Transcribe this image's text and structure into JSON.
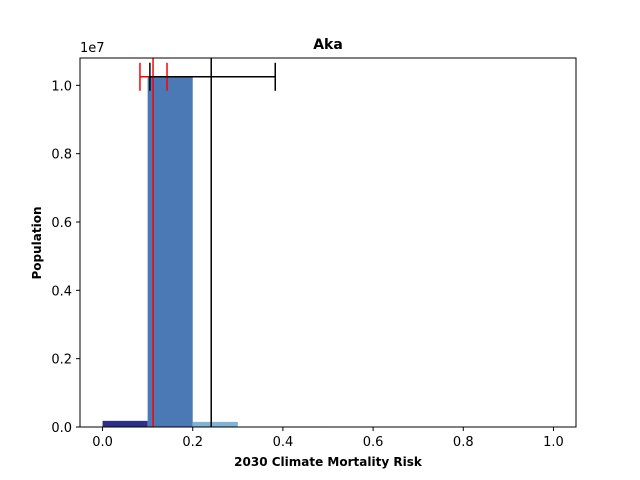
{
  "chart_data": {
    "type": "bar",
    "title": "Aka",
    "xlabel": "2030 Climate Mortality Risk",
    "ylabel": "Population",
    "y_multiplier_label": "1e7",
    "xlim": [
      -0.05,
      1.05
    ],
    "ylim": [
      0,
      10800000
    ],
    "grid": false,
    "x_ticks": [
      0.0,
      0.2,
      0.4,
      0.6,
      0.8,
      1.0
    ],
    "x_tick_labels": [
      "0.0",
      "0.2",
      "0.4",
      "0.6",
      "0.8",
      "1.0"
    ],
    "y_ticks": [
      0,
      2000000,
      4000000,
      6000000,
      8000000,
      10000000
    ],
    "y_tick_labels": [
      "0.0",
      "0.2",
      "0.4",
      "0.6",
      "0.8",
      "1.0"
    ],
    "bars": [
      {
        "x0": 0.0,
        "x1": 0.1,
        "value": 180000,
        "color": "#2c2f8a"
      },
      {
        "x0": 0.1,
        "x1": 0.2,
        "value": 10250000,
        "color": "#4a79b6"
      },
      {
        "x0": 0.2,
        "x1": 0.3,
        "value": 150000,
        "color": "#7fb3d8"
      },
      {
        "x0": 0.4,
        "x1": 0.5,
        "value": 20000,
        "color": "#f0f2c6"
      }
    ],
    "reference_lines": [
      {
        "x": 0.112,
        "color": "#ff0000",
        "error_bar": {
          "low": 0.083,
          "high": 0.143,
          "y": 10250000
        }
      },
      {
        "x": 0.241,
        "color": "#000000",
        "error_bar": {
          "low": 0.105,
          "high": 0.383,
          "y": 10250000
        }
      }
    ]
  }
}
